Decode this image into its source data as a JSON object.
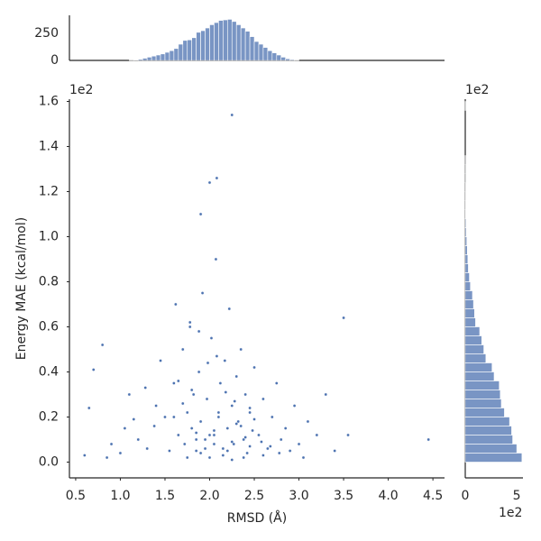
{
  "chart_data": [
    {
      "type": "scatter",
      "x_label": "RMSD (Å)",
      "y_label": "Energy MAE (kcal/mol)",
      "y_offset_label": "1e2",
      "color": "#4c72b0",
      "xlim": [
        0.43,
        4.63
      ],
      "ylim": [
        -0.07,
        1.61
      ],
      "xticks": [
        0.5,
        {
          "value": 1,
          "label": "1.0"
        },
        1.5,
        {
          "value": 2,
          "label": "2.0"
        },
        2.5,
        {
          "value": 3,
          "label": "3.0"
        },
        3.5,
        {
          "value": 4,
          "label": "4.0"
        },
        4.5
      ],
      "yticks": [
        {
          "value": 0,
          "label": "0.0"
        },
        0.2,
        0.4,
        0.6,
        0.8,
        {
          "value": 1,
          "label": "1.0"
        },
        1.2,
        1.4,
        1.6
      ],
      "x": [
        2.25,
        2.0,
        2.08,
        1.9,
        3.5,
        4.45,
        3.55,
        0.6,
        0.65,
        0.8,
        0.7,
        0.85,
        0.9,
        1.0,
        1.05,
        1.1,
        1.2,
        1.3,
        1.4,
        1.45,
        1.5,
        1.55,
        1.6,
        1.62,
        1.65,
        1.7,
        1.72,
        1.75,
        1.78,
        1.8,
        1.82,
        1.85,
        1.88,
        1.9,
        1.92,
        1.95,
        1.97,
        2.0,
        2.02,
        2.05,
        2.07,
        2.1,
        2.12,
        2.15,
        2.17,
        2.2,
        2.22,
        2.25,
        2.27,
        2.3,
        2.32,
        2.35,
        2.38,
        2.4,
        2.42,
        2.45,
        2.5,
        2.55,
        2.6,
        2.65,
        2.7,
        2.75,
        2.8,
        2.85,
        2.9,
        2.95,
        3.0,
        3.1,
        3.2,
        3.3,
        3.4,
        1.75,
        1.85,
        1.95,
        2.05,
        2.15,
        2.25,
        2.35,
        2.45,
        1.6,
        1.7,
        1.8,
        1.9,
        2.0,
        2.1,
        2.2,
        2.3,
        2.4,
        2.5,
        2.6,
        1.65,
        1.85,
        2.05,
        2.25,
        2.45,
        1.98,
        2.18,
        2.38,
        1.88,
        2.08,
        2.28,
        1.78,
        2.48,
        2.58,
        1.38,
        1.28,
        2.68,
        2.78,
        3.05,
        1.15
      ],
      "y": [
        1.54,
        1.24,
        1.26,
        1.1,
        0.64,
        0.1,
        0.12,
        0.03,
        0.24,
        0.52,
        0.41,
        0.02,
        0.08,
        0.04,
        0.15,
        0.3,
        0.1,
        0.06,
        0.25,
        0.45,
        0.2,
        0.05,
        0.35,
        0.7,
        0.12,
        0.5,
        0.08,
        0.22,
        0.6,
        0.15,
        0.3,
        0.05,
        0.4,
        0.18,
        0.75,
        0.1,
        0.28,
        0.02,
        0.55,
        0.12,
        0.9,
        0.2,
        0.35,
        0.06,
        0.45,
        0.15,
        0.68,
        0.25,
        0.08,
        0.38,
        0.18,
        0.5,
        0.1,
        0.3,
        0.04,
        0.22,
        0.42,
        0.12,
        0.28,
        0.06,
        0.2,
        0.35,
        0.1,
        0.15,
        0.05,
        0.25,
        0.08,
        0.18,
        0.12,
        0.3,
        0.05,
        0.02,
        0.1,
        0.06,
        0.14,
        0.03,
        0.09,
        0.16,
        0.07,
        0.2,
        0.26,
        0.32,
        0.04,
        0.12,
        0.22,
        0.05,
        0.17,
        0.11,
        0.19,
        0.03,
        0.36,
        0.13,
        0.08,
        0.01,
        0.24,
        0.44,
        0.31,
        0.02,
        0.58,
        0.47,
        0.27,
        0.62,
        0.14,
        0.09,
        0.16,
        0.33,
        0.07,
        0.04,
        0.02,
        0.19
      ]
    },
    {
      "type": "histogram",
      "color": "#4c72b0",
      "ylim": [
        0,
        417
      ],
      "yticks": [
        0,
        250
      ],
      "bins": [
        1.0,
        1.05,
        1.1,
        1.15,
        1.2,
        1.25,
        1.3,
        1.35,
        1.4,
        1.45,
        1.5,
        1.55,
        1.6,
        1.65,
        1.7,
        1.75,
        1.8,
        1.85,
        1.9,
        1.95,
        2.0,
        2.05,
        2.1,
        2.15,
        2.2,
        2.25,
        2.3,
        2.35,
        2.4,
        2.45,
        2.5,
        2.55,
        2.6,
        2.65,
        2.7,
        2.75,
        2.8,
        2.85,
        2.9,
        2.95,
        3.0
      ],
      "counts": [
        0,
        0,
        2,
        5,
        10,
        20,
        30,
        40,
        50,
        60,
        75,
        90,
        110,
        150,
        185,
        190,
        210,
        260,
        275,
        300,
        330,
        350,
        370,
        375,
        380,
        360,
        330,
        300,
        270,
        220,
        175,
        150,
        120,
        90,
        70,
        50,
        30,
        15,
        8,
        3
      ]
    },
    {
      "type": "histogram",
      "orientation": "horizontal",
      "color": "#4c72b0",
      "x_offset_label": "1e2",
      "y_offset_label": "1e2",
      "xlim": [
        0,
        5.6
      ],
      "xticks": [
        0,
        5
      ],
      "bins": [
        0,
        0.04,
        0.08,
        0.12,
        0.16,
        0.2,
        0.24,
        0.28,
        0.32,
        0.36,
        0.4,
        0.44,
        0.48,
        0.52,
        0.56,
        0.6,
        0.64,
        0.68,
        0.72,
        0.76,
        0.8,
        0.84,
        0.88,
        0.92,
        0.96,
        1.0,
        1.04,
        1.08,
        1.12,
        1.16,
        1.2,
        1.24,
        1.28,
        1.32,
        1.36,
        1.4,
        1.44,
        1.48,
        1.52,
        1.56,
        1.6
      ],
      "counts": [
        5.5,
        5.0,
        4.6,
        4.5,
        4.3,
        3.8,
        3.5,
        3.4,
        3.3,
        2.8,
        2.6,
        2.0,
        1.8,
        1.6,
        1.4,
        1.0,
        0.9,
        0.8,
        0.7,
        0.5,
        0.4,
        0.3,
        0.25,
        0.2,
        0.15,
        0.1,
        0.08,
        0.05,
        0.04,
        0.03,
        0.02,
        0.01,
        0.01,
        0.005,
        0,
        0,
        0,
        0,
        0,
        0.01
      ]
    }
  ]
}
